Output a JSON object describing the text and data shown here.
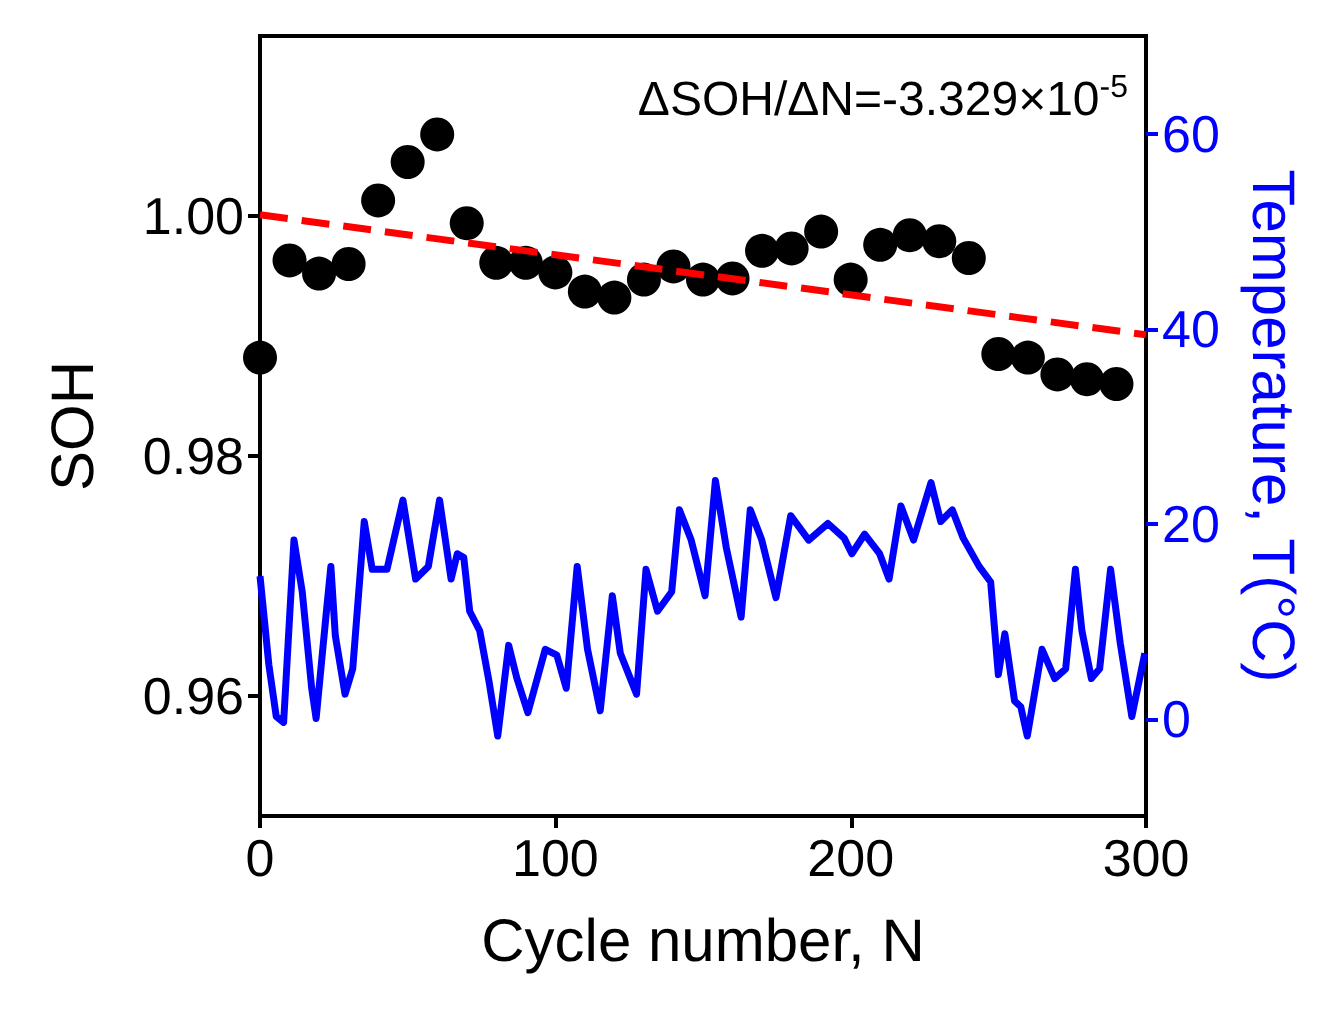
{
  "chart_data": {
    "type": "scatter",
    "xlabel": "Cycle number, N",
    "ylabel": "SOH",
    "y2label": "Temperature, T(°C)",
    "annotations": [
      "ΔSOH/ΔN=-3.329×10$^{-5}$"
    ],
    "xlim": [
      0,
      300
    ],
    "xticks": [
      0,
      100,
      200,
      300
    ],
    "ylim": [
      0.95,
      1.015
    ],
    "yticks": [
      0.96,
      0.98,
      {
        "value": 1,
        "label": "1.00"
      }
    ],
    "y2lim": [
      -10,
      70
    ],
    "y2ticks": [
      0,
      20,
      40,
      60
    ],
    "grid": false,
    "series": [
      {
        "type": "scatter",
        "color": "#000000",
        "marker": "circle",
        "x": [
          0,
          10,
          20,
          30,
          40,
          50,
          60,
          70,
          80,
          90,
          100,
          110,
          120,
          130,
          140,
          150,
          160,
          170,
          180,
          190,
          200,
          210,
          220,
          230,
          240,
          250,
          260,
          270,
          280,
          290
        ],
        "values": [
          0.9882,
          0.9963,
          0.9952,
          0.996,
          1.0013,
          1.0045,
          1.0068,
          0.9994,
          0.9961,
          0.9961,
          0.9953,
          0.9937,
          0.9932,
          0.9947,
          0.9958,
          0.9947,
          0.9948,
          0.9971,
          0.9973,
          0.9987,
          0.9947,
          0.9976,
          0.9984,
          0.9979,
          0.9965,
          0.9885,
          0.9882,
          0.9868,
          0.9864,
          0.986
        ]
      },
      {
        "type": "line",
        "color": "#ff0000",
        "marker": "none",
        "line_style": "dashed",
        "x": [
          0,
          300
        ],
        "values": [
          1.0001,
          0.9901
        ]
      },
      {
        "type": "line",
        "color": "#0000ff",
        "marker": "none",
        "line_style": "solid",
        "axis": "y2",
        "x": [
          0,
          3,
          5.5,
          8,
          11.5,
          14.3,
          17.5,
          19,
          22.3,
          24,
          25.5,
          28.8,
          31.4,
          35.3,
          38,
          43,
          48.4,
          52.7,
          57,
          60.8,
          64.7,
          66.8,
          69,
          71,
          74.4,
          77.6,
          80.5,
          84.2,
          87,
          90.7,
          96.6,
          100.5,
          103.7,
          107.4,
          110.9,
          115.2,
          119.3,
          122,
          127.5,
          130.7,
          134.6,
          139.4,
          142,
          146,
          150.7,
          154.2,
          157.9,
          162.9,
          166,
          169.9,
          174.7,
          179.7,
          185.8,
          192.3,
          197.8,
          200.4,
          204.7,
          209.8,
          213,
          217,
          221.3,
          227.2,
          230.5,
          234.4,
          238.1,
          243.5,
          247.4,
          250,
          252.2,
          255.5,
          257.6,
          259.8,
          264.8,
          269.1,
          272.8,
          276.1,
          278.3,
          281.5,
          284.3,
          288,
          291.3,
          295.2,
          299.6
        ],
        "values": [
          14.6,
          5.5,
          0.2,
          -0.4,
          18.3,
          13,
          3.1,
          0,
          10.4,
          15.6,
          8.5,
          2.5,
          5.1,
          20.2,
          15.3,
          15.3,
          22.4,
          14.3,
          15.6,
          22.4,
          14.3,
          16.9,
          16.5,
          11,
          9,
          3.7,
          -1.8,
          7.5,
          4.1,
          0.6,
          7.1,
          6.5,
          3.1,
          15.6,
          7.1,
          0.8,
          12.6,
          6.7,
          2.5,
          15.3,
          11,
          13,
          21.4,
          18.3,
          12.6,
          24.4,
          17.5,
          10.4,
          21.4,
          18.3,
          12.4,
          20.8,
          18.3,
          20,
          18.5,
          16.9,
          18.9,
          16.9,
          14.3,
          21.8,
          18.3,
          24.2,
          20.2,
          21.4,
          18.5,
          15.6,
          14,
          4.5,
          8.7,
          1.8,
          1.2,
          -1.8,
          7.1,
          4.1,
          5.1,
          15.3,
          9,
          4.1,
          5.1,
          15.3,
          7.7,
          0.2,
          6.7
        ]
      }
    ]
  }
}
